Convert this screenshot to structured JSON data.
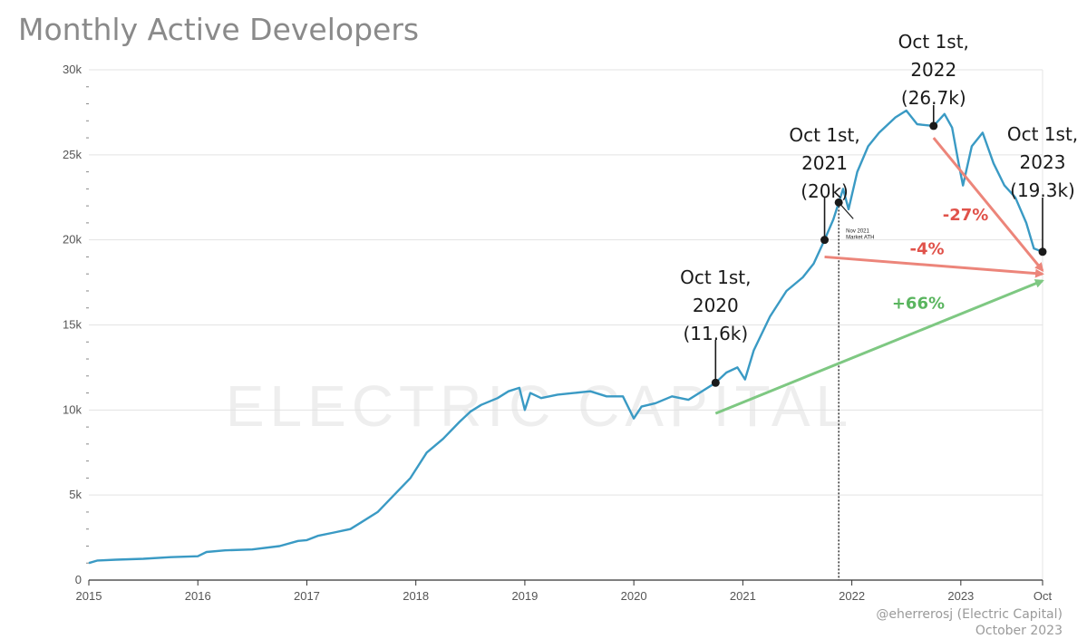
{
  "chart_data": {
    "type": "line",
    "title": "Monthly Active Developers",
    "xlabel": "",
    "ylabel": "",
    "ylim": [
      0,
      30000
    ],
    "y_ticks": [
      {
        "value": 0,
        "label": "0"
      },
      {
        "value": 5000,
        "label": "5k"
      },
      {
        "value": 10000,
        "label": "10k"
      },
      {
        "value": 15000,
        "label": "15k"
      },
      {
        "value": 20000,
        "label": "20k"
      },
      {
        "value": 25000,
        "label": "25k"
      },
      {
        "value": 30000,
        "label": "30k"
      }
    ],
    "xlim": [
      2015.0,
      2023.75
    ],
    "x_ticks": [
      {
        "value": 2015,
        "label": "2015"
      },
      {
        "value": 2016,
        "label": "2016"
      },
      {
        "value": 2017,
        "label": "2017"
      },
      {
        "value": 2018,
        "label": "2018"
      },
      {
        "value": 2019,
        "label": "2019"
      },
      {
        "value": 2020,
        "label": "2020"
      },
      {
        "value": 2021,
        "label": "2021"
      },
      {
        "value": 2022,
        "label": "2022"
      },
      {
        "value": 2023,
        "label": "2023"
      },
      {
        "value": 2023.75,
        "label": "Oct"
      }
    ],
    "series": [
      {
        "name": "Monthly Active Developers",
        "color": "#3a9ac4",
        "points": [
          [
            2015.0,
            1000
          ],
          [
            2015.08,
            1150
          ],
          [
            2015.25,
            1200
          ],
          [
            2015.5,
            1250
          ],
          [
            2015.75,
            1350
          ],
          [
            2016.0,
            1400
          ],
          [
            2016.08,
            1650
          ],
          [
            2016.25,
            1750
          ],
          [
            2016.5,
            1800
          ],
          [
            2016.75,
            2000
          ],
          [
            2016.92,
            2300
          ],
          [
            2017.0,
            2350
          ],
          [
            2017.1,
            2600
          ],
          [
            2017.25,
            2800
          ],
          [
            2017.4,
            3000
          ],
          [
            2017.5,
            3400
          ],
          [
            2017.65,
            4000
          ],
          [
            2017.8,
            5000
          ],
          [
            2017.95,
            6000
          ],
          [
            2018.1,
            7500
          ],
          [
            2018.25,
            8300
          ],
          [
            2018.4,
            9300
          ],
          [
            2018.5,
            9900
          ],
          [
            2018.6,
            10300
          ],
          [
            2018.75,
            10700
          ],
          [
            2018.85,
            11100
          ],
          [
            2018.95,
            11300
          ],
          [
            2019.0,
            10000
          ],
          [
            2019.05,
            11000
          ],
          [
            2019.15,
            10700
          ],
          [
            2019.3,
            10900
          ],
          [
            2019.45,
            11000
          ],
          [
            2019.6,
            11100
          ],
          [
            2019.75,
            10800
          ],
          [
            2019.9,
            10800
          ],
          [
            2020.0,
            9500
          ],
          [
            2020.07,
            10200
          ],
          [
            2020.2,
            10400
          ],
          [
            2020.35,
            10800
          ],
          [
            2020.5,
            10600
          ],
          [
            2020.6,
            11000
          ],
          [
            2020.75,
            11600
          ],
          [
            2020.85,
            12200
          ],
          [
            2020.95,
            12500
          ],
          [
            2021.02,
            11800
          ],
          [
            2021.1,
            13500
          ],
          [
            2021.25,
            15500
          ],
          [
            2021.4,
            17000
          ],
          [
            2021.55,
            17800
          ],
          [
            2021.65,
            18600
          ],
          [
            2021.75,
            20000
          ],
          [
            2021.83,
            21200
          ],
          [
            2021.92,
            23000
          ],
          [
            2021.97,
            21800
          ],
          [
            2022.05,
            24000
          ],
          [
            2022.15,
            25500
          ],
          [
            2022.25,
            26300
          ],
          [
            2022.4,
            27200
          ],
          [
            2022.5,
            27600
          ],
          [
            2022.6,
            26800
          ],
          [
            2022.75,
            26700
          ],
          [
            2022.85,
            27400
          ],
          [
            2022.92,
            26600
          ],
          [
            2022.98,
            24500
          ],
          [
            2023.02,
            23200
          ],
          [
            2023.1,
            25500
          ],
          [
            2023.2,
            26300
          ],
          [
            2023.3,
            24500
          ],
          [
            2023.4,
            23200
          ],
          [
            2023.5,
            22500
          ],
          [
            2023.6,
            21000
          ],
          [
            2023.67,
            19500
          ],
          [
            2023.75,
            19300
          ]
        ]
      }
    ],
    "markers": [
      {
        "x": 2020.75,
        "y": 11600,
        "lines": [
          "Oct 1st,",
          "2020",
          "(11.6k)"
        ]
      },
      {
        "x": 2021.75,
        "y": 20000,
        "lines": [
          "Oct 1st,",
          "2021",
          "(20k)"
        ]
      },
      {
        "x": 2022.75,
        "y": 26700,
        "lines": [
          "Oct 1st,",
          "2022",
          "(26.7k)"
        ]
      },
      {
        "x": 2023.75,
        "y": 19300,
        "lines": [
          "Oct 1st,",
          "2023",
          "(19.3k)"
        ]
      }
    ],
    "ath": {
      "x": 2021.88,
      "y": 22200,
      "lines": [
        "Nov 2021",
        "Market ATH"
      ]
    },
    "trends": [
      {
        "label": "+66%",
        "color": "#7ec882",
        "from": [
          2020.75,
          9800
        ],
        "to": [
          2023.75,
          17600
        ]
      },
      {
        "label": "-4%",
        "color": "#ec857a",
        "from": [
          2021.75,
          19000
        ],
        "to": [
          2023.75,
          18000
        ]
      },
      {
        "label": "-27%",
        "color": "#ec857a",
        "from": [
          2022.75,
          26000
        ],
        "to": [
          2023.75,
          18200
        ]
      }
    ],
    "watermark": "ELECTRIC CAPITAL",
    "credits": [
      "@eherrerosj (Electric Capital)",
      "October 2023"
    ]
  }
}
